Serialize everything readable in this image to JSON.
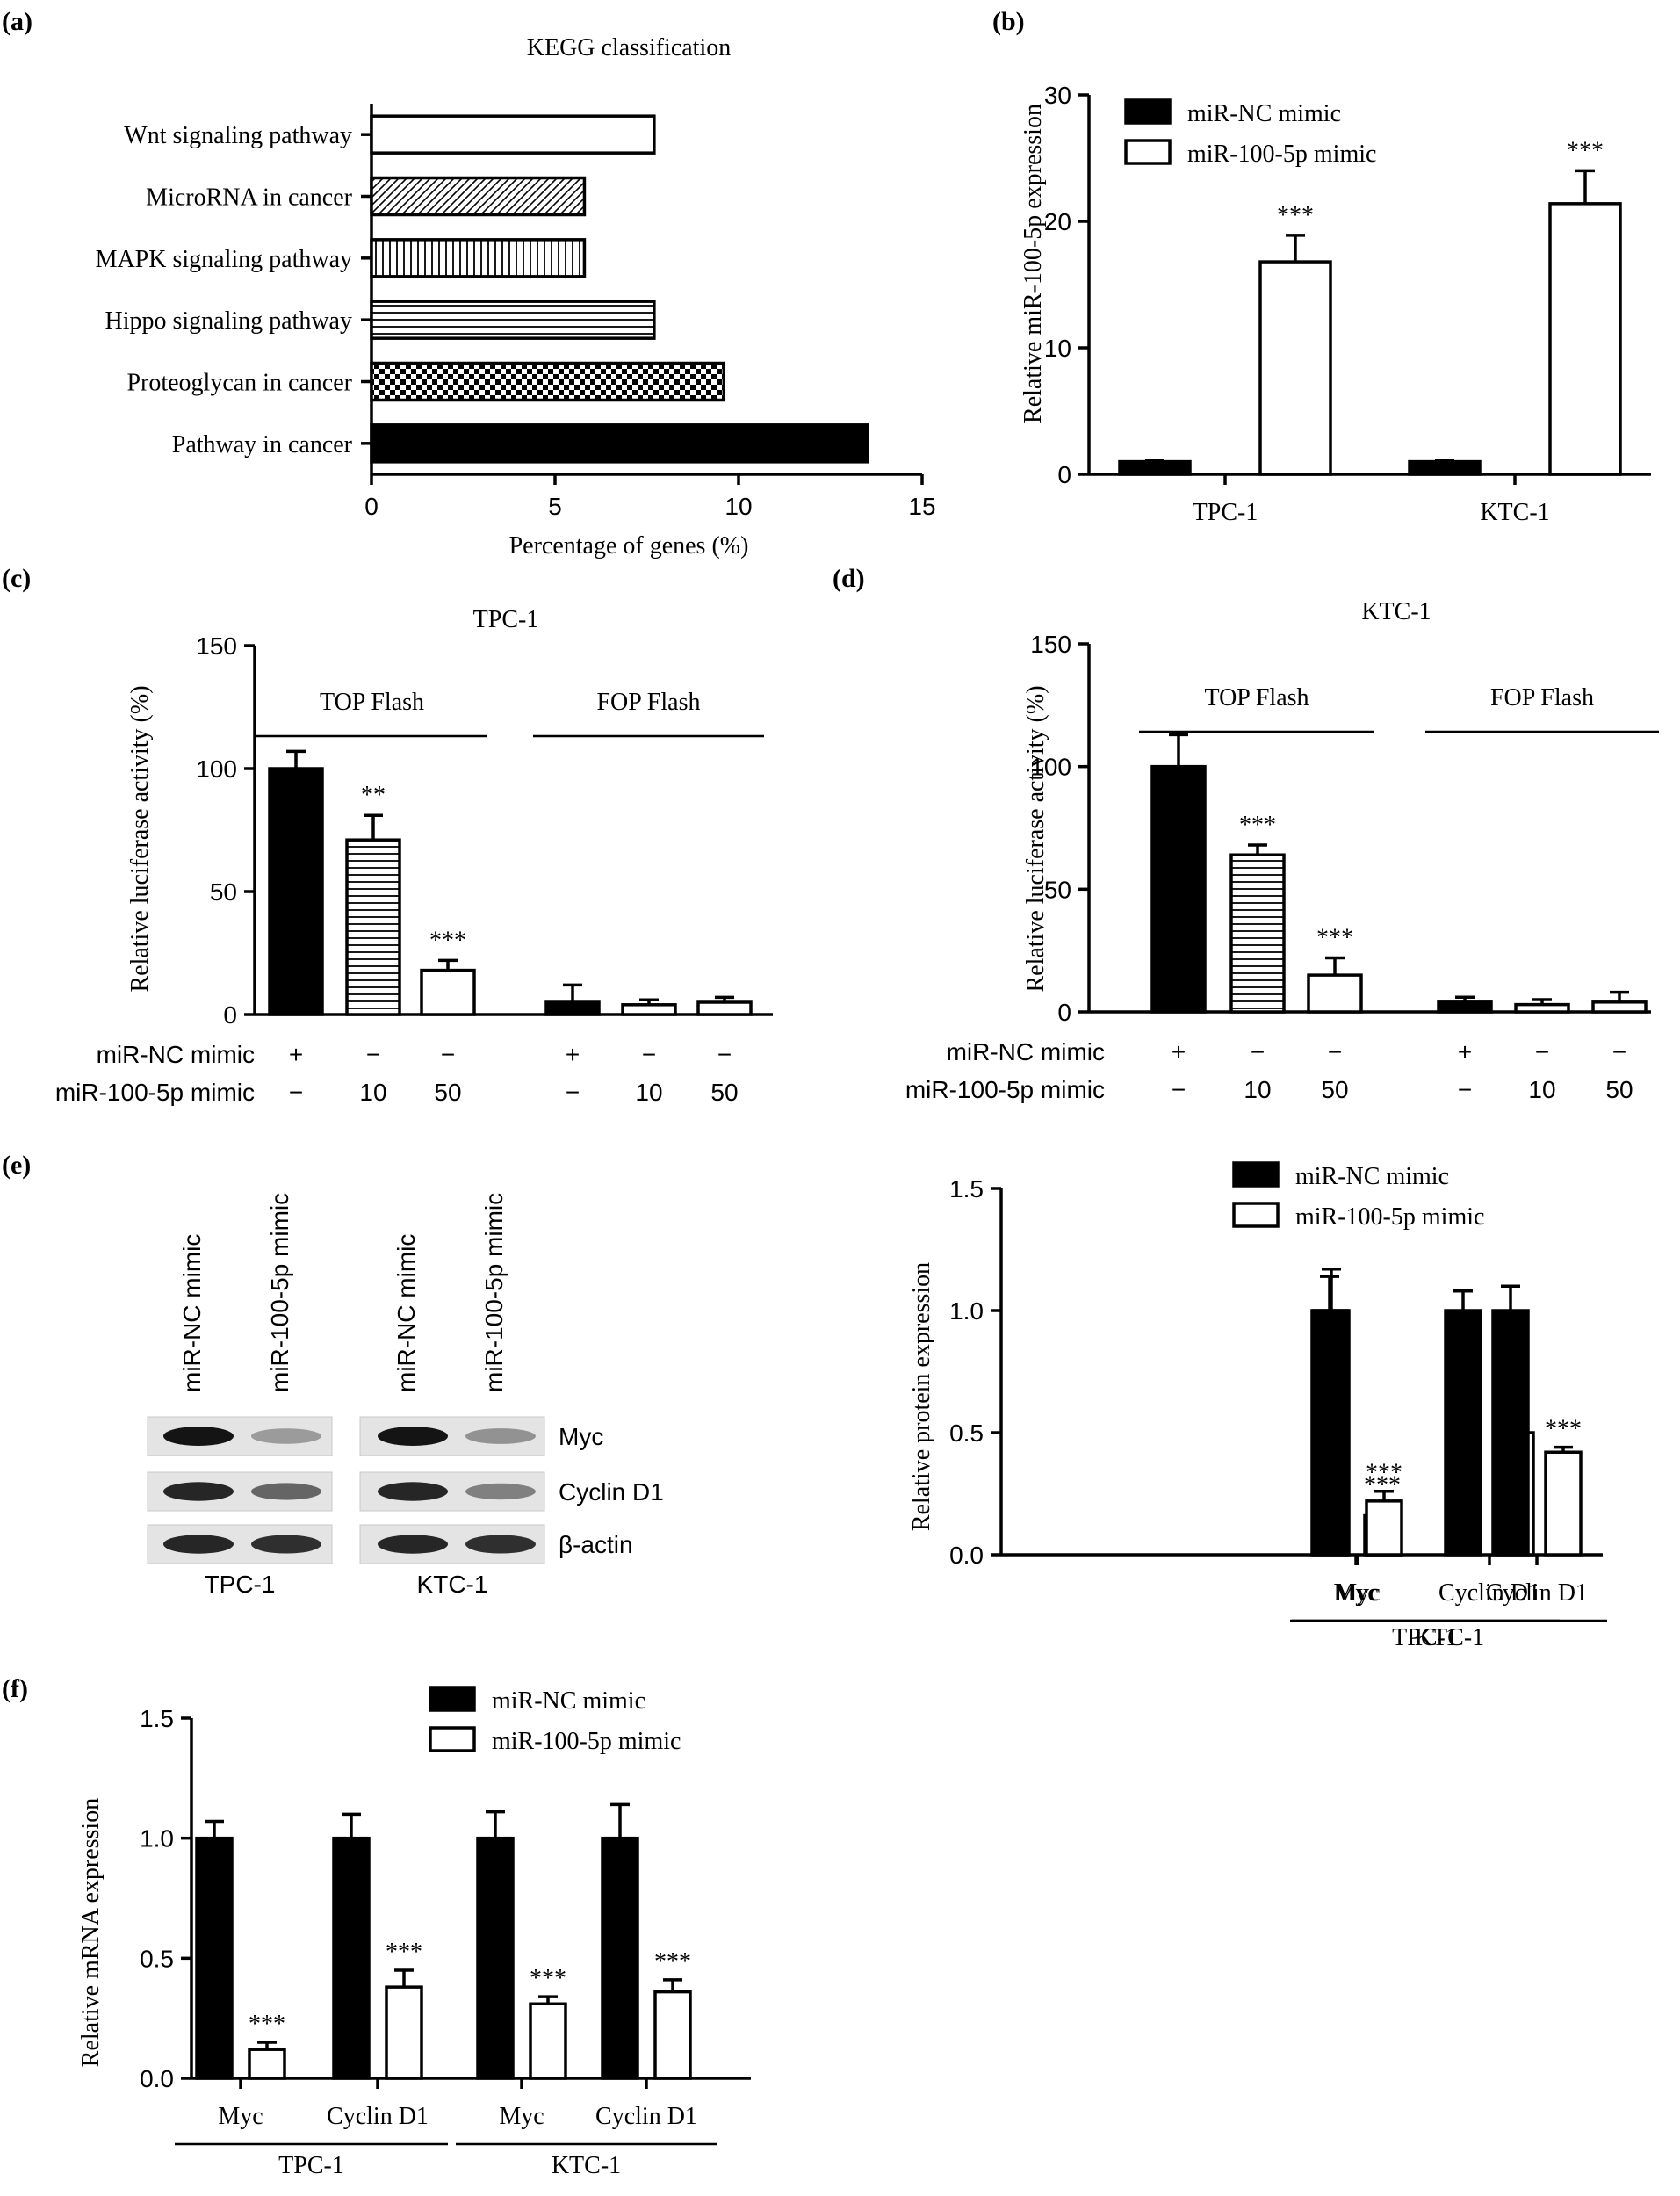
{
  "chart_data": [
    {
      "panel": "(a)",
      "type": "bar",
      "orientation": "horizontal",
      "title": "KEGG classification",
      "xlabel": "Percentage of genes (%)",
      "ylabel": "",
      "xlim": [
        0,
        15
      ],
      "xticks": [
        0,
        5,
        10,
        15
      ],
      "categories": [
        "Wnt signaling pathway",
        "MicroRNA in cancer",
        "MAPK signaling pathway",
        "Hippo signaling pathway",
        "Proteoglycan in cancer",
        "Pathway in cancer"
      ],
      "values": [
        7.7,
        5.8,
        5.8,
        7.7,
        9.6,
        13.5
      ],
      "fills": [
        "white",
        "diagonal",
        "vertical",
        "horizontal",
        "checker",
        "solid"
      ]
    },
    {
      "panel": "(b)",
      "type": "bar",
      "title": "",
      "xlabel": "",
      "ylabel": "Relative miR-100-5p expression",
      "ylim": [
        0,
        30
      ],
      "yticks": [
        0,
        10,
        20,
        30
      ],
      "categories": [
        "TPC-1",
        "KTC-1"
      ],
      "series": [
        {
          "name": "miR-NC mimic",
          "values": [
            1.0,
            1.0
          ],
          "errors": [
            0.1,
            0.1
          ],
          "fill": "solid"
        },
        {
          "name": "miR-100-5p mimic",
          "values": [
            16.8,
            21.4
          ],
          "errors": [
            2.1,
            2.6
          ],
          "fill": "white"
        }
      ],
      "significance": [
        "",
        "",
        "***",
        "***"
      ],
      "legend": "top-left"
    },
    {
      "panel": "(c)",
      "type": "bar",
      "title": "TPC-1",
      "ylabel": "Relative luciferase activity (%)",
      "ylim": [
        0,
        150
      ],
      "yticks": [
        0,
        50,
        100,
        150
      ],
      "groups": [
        "TOP Flash",
        "FOP Flash"
      ],
      "values": [
        100,
        71,
        18,
        5,
        4,
        5
      ],
      "errors": [
        7,
        10,
        4,
        7,
        2,
        2
      ],
      "fills": [
        "solid",
        "horizontal",
        "white",
        "solid",
        "white",
        "white"
      ],
      "significance": [
        "",
        "**",
        "***",
        "",
        "",
        ""
      ],
      "row_labels": [
        "miR-NC mimic",
        "miR-100-5p mimic"
      ],
      "nc_row": [
        "+",
        "−",
        "−",
        "+",
        "−",
        "−"
      ],
      "mimic_row": [
        "−",
        "10",
        "50",
        "−",
        "10",
        "50"
      ]
    },
    {
      "panel": "(d)",
      "type": "bar",
      "title": "KTC-1",
      "ylabel": "Relative luciferase activity (%)",
      "ylim": [
        0,
        150
      ],
      "yticks": [
        0,
        50,
        100,
        150
      ],
      "groups": [
        "TOP Flash",
        "FOP Flash"
      ],
      "values": [
        100,
        64,
        15,
        4,
        3,
        4
      ],
      "errors": [
        13,
        4,
        7,
        2,
        2,
        4
      ],
      "fills": [
        "solid",
        "horizontal",
        "white",
        "solid",
        "white",
        "white"
      ],
      "significance": [
        "",
        "***",
        "***",
        "",
        "",
        ""
      ],
      "row_labels": [
        "miR-NC mimic",
        "miR-100-5p mimic"
      ],
      "nc_row": [
        "+",
        "−",
        "−",
        "+",
        "−",
        "−"
      ],
      "mimic_row": [
        "−",
        "10",
        "50",
        "−",
        "10",
        "50"
      ]
    },
    {
      "panel": "(e)",
      "type": "bar",
      "title": "",
      "ylabel": "Relative protein expression",
      "ylim": [
        0,
        1.5
      ],
      "yticks": [
        0.0,
        0.5,
        1.0,
        1.5
      ],
      "categories": [
        "Myc",
        "Cyclin D1",
        "Myc",
        "Cyclin D1"
      ],
      "cell_lines": [
        "TPC-1",
        "KTC-1"
      ],
      "series": [
        {
          "name": "miR-NC mimic",
          "values": [
            1.0,
            1.0,
            1.0,
            1.0
          ],
          "errors": [
            0.14,
            0.08,
            0.17,
            0.1
          ],
          "fill": "solid"
        },
        {
          "name": "miR-100-5p mimic",
          "values": [
            0.16,
            0.5,
            0.22,
            0.42
          ],
          "errors": [
            0.05,
            0.06,
            0.04,
            0.02
          ],
          "fill": "white"
        }
      ],
      "significance": [
        "***",
        "**",
        "***",
        "***"
      ],
      "legend": "top-right"
    },
    {
      "panel": "(f)",
      "type": "bar",
      "title": "",
      "ylabel": "Relative mRNA expression",
      "ylim": [
        0,
        1.5
      ],
      "yticks": [
        0.0,
        0.5,
        1.0,
        1.5
      ],
      "categories": [
        "Myc",
        "Cyclin D1",
        "Myc",
        "Cyclin D1"
      ],
      "cell_lines": [
        "TPC-1",
        "KTC-1"
      ],
      "series": [
        {
          "name": "miR-NC mimic",
          "values": [
            1.0,
            1.0,
            1.0,
            1.0
          ],
          "errors": [
            0.07,
            0.1,
            0.11,
            0.14
          ],
          "fill": "solid"
        },
        {
          "name": "miR-100-5p mimic",
          "values": [
            0.12,
            0.38,
            0.31,
            0.36
          ],
          "errors": [
            0.03,
            0.07,
            0.03,
            0.05
          ],
          "fill": "white"
        }
      ],
      "significance": [
        "***",
        "***",
        "***",
        "***"
      ],
      "legend": "top-right"
    }
  ],
  "western_blot": {
    "panel": "(e)",
    "lane_labels": [
      "miR-NC mimic",
      "miR-100-5p mimic",
      "miR-NC mimic",
      "miR-100-5p mimic"
    ],
    "proteins": [
      "Myc",
      "Cyclin D1",
      "β-actin"
    ],
    "cell_lines": [
      "TPC-1",
      "KTC-1"
    ],
    "band_intensity": [
      [
        1.0,
        0.25,
        1.0,
        0.3
      ],
      [
        0.9,
        0.55,
        0.9,
        0.4
      ],
      [
        0.9,
        0.85,
        0.9,
        0.85
      ]
    ]
  }
}
